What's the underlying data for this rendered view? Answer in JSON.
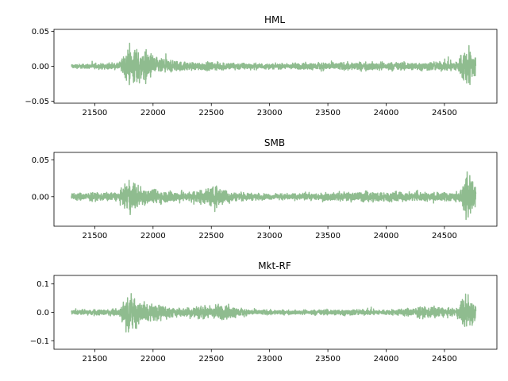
{
  "chart_data": [
    {
      "type": "line",
      "title": "HML",
      "xlim": [
        21150,
        24950
      ],
      "ylim": [
        -0.053,
        0.053
      ],
      "xticks": [
        21500,
        22000,
        22500,
        23000,
        23500,
        24000,
        24500
      ],
      "yticks": [
        -0.05,
        0.0,
        0.05
      ],
      "ytick_labels": [
        "−0.05",
        "0.00",
        "0.05"
      ],
      "color": "#8fbc8f",
      "x_range": [
        21300,
        24770
      ],
      "volatility_profile": [
        {
          "x": 21300,
          "amp": 0.004
        },
        {
          "x": 21700,
          "amp": 0.006
        },
        {
          "x": 21750,
          "amp": 0.02
        },
        {
          "x": 21800,
          "amp": 0.04
        },
        {
          "x": 21950,
          "amp": 0.03
        },
        {
          "x": 22050,
          "amp": 0.015
        },
        {
          "x": 22300,
          "amp": 0.008
        },
        {
          "x": 22600,
          "amp": 0.008
        },
        {
          "x": 23000,
          "amp": 0.005
        },
        {
          "x": 23500,
          "amp": 0.008
        },
        {
          "x": 23900,
          "amp": 0.008
        },
        {
          "x": 24300,
          "amp": 0.008
        },
        {
          "x": 24600,
          "amp": 0.01
        },
        {
          "x": 24700,
          "amp": 0.045
        },
        {
          "x": 24770,
          "amp": 0.02
        }
      ]
    },
    {
      "type": "line",
      "title": "SMB",
      "xlim": [
        21150,
        24950
      ],
      "ylim": [
        -0.04,
        0.06
      ],
      "xticks": [
        21500,
        22000,
        22500,
        23000,
        23500,
        24000,
        24500
      ],
      "yticks": [
        0.0,
        0.05
      ],
      "ytick_labels": [
        "0.00",
        "0.05"
      ],
      "color": "#8fbc8f",
      "x_range": [
        21300,
        24770
      ],
      "volatility_profile": [
        {
          "x": 21300,
          "amp": 0.007
        },
        {
          "x": 21700,
          "amp": 0.008
        },
        {
          "x": 21800,
          "amp": 0.03
        },
        {
          "x": 21950,
          "amp": 0.014
        },
        {
          "x": 22300,
          "amp": 0.009
        },
        {
          "x": 22550,
          "amp": 0.02
        },
        {
          "x": 22700,
          "amp": 0.008
        },
        {
          "x": 23000,
          "amp": 0.005
        },
        {
          "x": 23500,
          "amp": 0.007
        },
        {
          "x": 23850,
          "amp": 0.01
        },
        {
          "x": 24300,
          "amp": 0.008
        },
        {
          "x": 24650,
          "amp": 0.01
        },
        {
          "x": 24690,
          "amp": 0.05
        },
        {
          "x": 24770,
          "amp": 0.015
        }
      ]
    },
    {
      "type": "line",
      "title": "Mkt-RF",
      "xlim": [
        21150,
        24950
      ],
      "ylim": [
        -0.13,
        0.13
      ],
      "xticks": [
        21500,
        22000,
        22500,
        23000,
        23500,
        24000,
        24500
      ],
      "yticks": [
        -0.1,
        0.0,
        0.1
      ],
      "ytick_labels": [
        "−0.1",
        "0.0",
        "0.1"
      ],
      "color": "#8fbc8f",
      "x_range": [
        21300,
        24770
      ],
      "volatility_profile": [
        {
          "x": 21300,
          "amp": 0.012
        },
        {
          "x": 21700,
          "amp": 0.015
        },
        {
          "x": 21800,
          "amp": 0.09
        },
        {
          "x": 21950,
          "amp": 0.05
        },
        {
          "x": 22200,
          "amp": 0.02
        },
        {
          "x": 22600,
          "amp": 0.04
        },
        {
          "x": 22800,
          "amp": 0.015
        },
        {
          "x": 23200,
          "amp": 0.01
        },
        {
          "x": 23600,
          "amp": 0.015
        },
        {
          "x": 24000,
          "amp": 0.012
        },
        {
          "x": 24400,
          "amp": 0.03
        },
        {
          "x": 24600,
          "amp": 0.015
        },
        {
          "x": 24690,
          "amp": 0.1
        },
        {
          "x": 24770,
          "amp": 0.04
        }
      ]
    }
  ]
}
